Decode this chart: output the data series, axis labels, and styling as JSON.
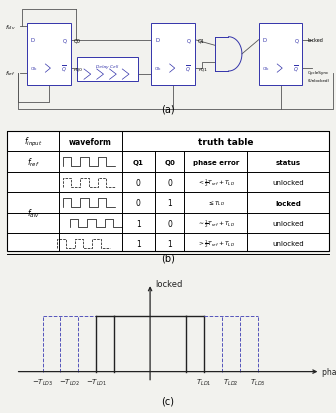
{
  "fig_width": 3.36,
  "fig_height": 4.14,
  "dpi": 100,
  "bg_color": "#f2f2ee",
  "circuit_color": "#3333aa",
  "wire_color": "#555555",
  "label_a": "(a)",
  "label_b": "(b)",
  "label_c": "(c)",
  "plot_color": "#222222",
  "dashed_color": "#5555bb"
}
